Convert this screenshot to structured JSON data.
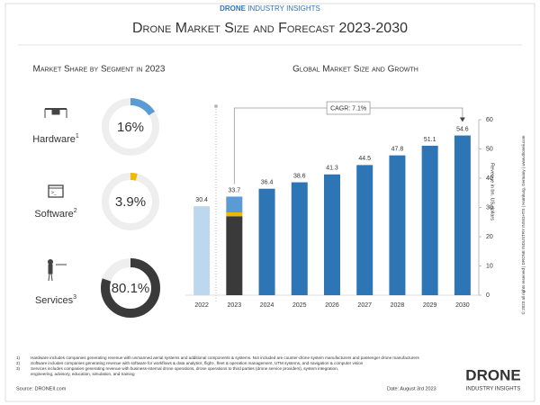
{
  "header": {
    "brand_bold": "DRONE",
    "brand_rest": "INDUSTRY INSIGHTS"
  },
  "title": "Drone Market Size and Forecast 2023-2030",
  "chart_data": [
    {
      "type": "donut",
      "title": "Market Share by Segment in 2023",
      "series": [
        {
          "name": "Hardware",
          "note": "1",
          "value": 16,
          "value_label": "16%",
          "color": "#5b9bd5"
        },
        {
          "name": "Software",
          "note": "2",
          "value": 3.9,
          "value_label": "3.9%",
          "color": "#f2b800"
        },
        {
          "name": "Services",
          "note": "3",
          "value": 80.1,
          "value_label": "80.1%",
          "color": "#3a3a3a"
        }
      ]
    },
    {
      "type": "bar",
      "title": "Global Market Size and Growth",
      "categories": [
        "2022",
        "2023",
        "2024",
        "2025",
        "2026",
        "2027",
        "2028",
        "2029",
        "2030"
      ],
      "values": [
        30.4,
        33.7,
        36.4,
        38.6,
        41.3,
        44.5,
        47.8,
        51.1,
        54.6
      ],
      "colors": [
        "#bdd7ee",
        "#2e75b6",
        "#2e75b6",
        "#2e75b6",
        "#2e75b6",
        "#2e75b6",
        "#2e75b6",
        "#2e75b6",
        "#2e75b6"
      ],
      "stacked_category": "2023",
      "ylim": [
        0,
        60
      ],
      "yticks": [
        0,
        10,
        20,
        30,
        40,
        50,
        60
      ],
      "ylabel": "Revenue in bn. US dollars",
      "annotation": "CAGR: 7.1%"
    }
  ],
  "footnotes": [
    {
      "marker": "1)",
      "text": "Hardware includes companies generating revenue with unmanned aerial systems and additional components & systems. Not included are counter-drone system manufacturers and passenger drone manufacturers"
    },
    {
      "marker": "2)",
      "text": "Software includes companies generating revenue with software for workflows & data analytics, flight-, fleet & operation management, UTM systems, and navigation & computer vision"
    },
    {
      "marker": "3)",
      "text": "Services includes companies generating revenue with business-internal drone operations, drone operations to third parties (drone service providers), system integration,"
    },
    {
      "marker": "",
      "text": "engineering, advisory, education, simulation, and training"
    }
  ],
  "source": "Source: DRONEII.com",
  "date": "Date: August 3rd 2023",
  "copyright": "© 2023 all rights reserved | DRONE INDUSTRY INSIGHTS | Hamburg, Germany | www.droneii.com",
  "logo": {
    "bold": "DRONE",
    "rest": "INDUSTRY INSIGHTS"
  }
}
